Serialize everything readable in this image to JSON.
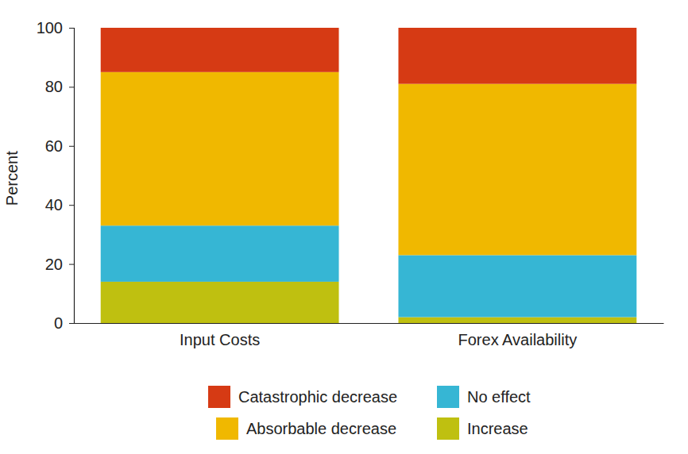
{
  "chart_data": {
    "type": "bar",
    "stacked": true,
    "y_label": "Percent",
    "categories": [
      "Input Costs",
      "Forex Availability"
    ],
    "series": [
      {
        "name": "Increase",
        "color": "#bfc010",
        "values": [
          14,
          2
        ]
      },
      {
        "name": "No effect",
        "color": "#36b6d4",
        "values": [
          19,
          21
        ]
      },
      {
        "name": "Absorbable decrease",
        "color": "#f0b800",
        "values": [
          52,
          58
        ]
      },
      {
        "name": "Catastrophic decrease",
        "color": "#d63a14",
        "values": [
          15,
          19
        ]
      }
    ],
    "ylim": [
      0,
      100
    ],
    "yticks": [
      0,
      20,
      40,
      60,
      80,
      100
    ],
    "grid": false,
    "legend": "bottom"
  }
}
